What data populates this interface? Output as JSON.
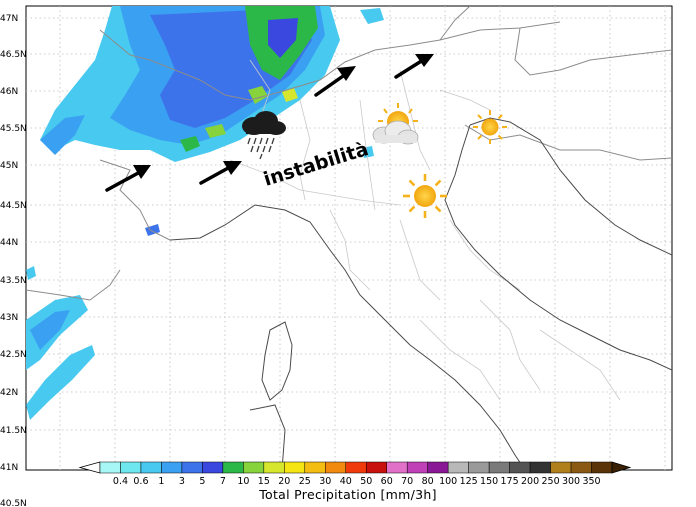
{
  "lat_labels": [
    "47N",
    "46.5N",
    "46N",
    "45.5N",
    "45N",
    "44.5N",
    "44N",
    "43.5N",
    "43N",
    "42.5N",
    "42N",
    "41.5N",
    "41N",
    "40.5N"
  ],
  "annotation": "instabilità",
  "colorbar": {
    "title": "Total Precipitation [mm/3h]",
    "ticks": [
      "0.4",
      "0.6",
      "1",
      "3",
      "5",
      "7",
      "10",
      "15",
      "20",
      "25",
      "30",
      "40",
      "50",
      "60",
      "70",
      "80",
      "100",
      "125",
      "150",
      "175",
      "200",
      "250",
      "300",
      "350"
    ],
    "colors": [
      "#a8f7f7",
      "#6ee7ef",
      "#48c9f0",
      "#3aa0f2",
      "#3d73ea",
      "#3a48e0",
      "#2cb848",
      "#86d33c",
      "#d6e62c",
      "#f5e613",
      "#f4bd12",
      "#f38a10",
      "#f03a0c",
      "#c8100c",
      "#e070c8",
      "#c040b8",
      "#8a1896",
      "#b8b8b8",
      "#9a9a9a",
      "#7a7a7a",
      "#545454",
      "#333333",
      "#b0801c",
      "#8a5a14",
      "#5a3408"
    ]
  },
  "icons": {
    "rain": "rain-cloud-icon",
    "partly_cloudy": "sun-behind-cloud-icon",
    "sun": "sun-icon",
    "wind": "wind-arrow-icon"
  },
  "colors": {
    "land_border": "#9a9a9a",
    "region_border": "#c4c4c4",
    "coast": "#555555",
    "sun": "#f5b21a"
  }
}
